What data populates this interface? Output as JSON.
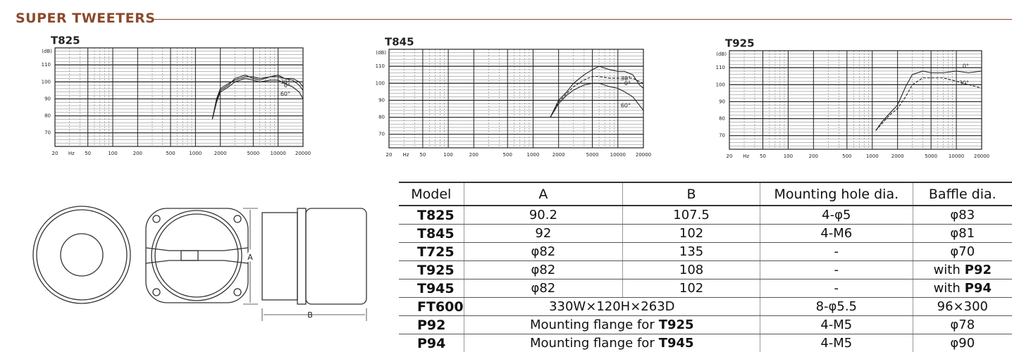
{
  "header": {
    "title": "SUPER TWEETERS"
  },
  "chart_data": [
    {
      "type": "line",
      "title": "T825",
      "y_label": "(dB)",
      "x_label": "Hz",
      "xlog": true,
      "xlim": [
        20,
        20000
      ],
      "ylim": [
        62,
        120
      ],
      "xticks": [
        20,
        50,
        100,
        200,
        500,
        1000,
        2000,
        5000,
        10000,
        20000
      ],
      "yticks": [
        70,
        80,
        90,
        100,
        110
      ],
      "grid": true,
      "color": "#222",
      "x": [
        1600,
        1800,
        2000,
        2500,
        3000,
        4000,
        5000,
        6000,
        8000,
        10000,
        12000,
        15000,
        18000,
        20000
      ],
      "series": [
        {
          "name": "30°",
          "dashed": false,
          "values": [
            78,
            90,
            96,
            99,
            101,
            103,
            103,
            102,
            103,
            104,
            102,
            102,
            100,
            97
          ]
        },
        {
          "name": "0°",
          "dashed": false,
          "values": [
            78,
            89,
            95,
            98,
            102,
            104,
            102,
            101,
            103,
            103,
            102,
            101,
            98,
            95
          ]
        },
        {
          "name": "60°",
          "dashed": false,
          "values": [
            78,
            88,
            94,
            97,
            100,
            102,
            101,
            100,
            101,
            101,
            99,
            97,
            94,
            90
          ]
        }
      ]
    },
    {
      "type": "line",
      "title": "T845",
      "y_label": "(dB)",
      "x_label": "Hz",
      "xlog": true,
      "xlim": [
        20,
        20000
      ],
      "ylim": [
        62,
        120
      ],
      "xticks": [
        20,
        50,
        100,
        200,
        500,
        1000,
        2000,
        5000,
        10000,
        20000
      ],
      "yticks": [
        70,
        80,
        90,
        100,
        110
      ],
      "grid": true,
      "color": "#222",
      "x": [
        1600,
        2000,
        2500,
        3000,
        4000,
        5000,
        6000,
        8000,
        10000,
        12000,
        15000,
        18000,
        20000
      ],
      "series": [
        {
          "name": "0°",
          "dashed": false,
          "values": [
            80,
            90,
            95,
            100,
            105,
            108,
            110,
            108,
            107,
            107,
            105,
            99,
            97
          ]
        },
        {
          "name": "30°",
          "dashed": true,
          "values": [
            80,
            89,
            94,
            98,
            102,
            104,
            104,
            103,
            103,
            103,
            103,
            101,
            100
          ]
        },
        {
          "name": "60°",
          "dashed": false,
          "values": [
            80,
            88,
            93,
            96,
            99,
            100,
            100,
            98,
            97,
            95,
            92,
            87,
            84
          ]
        }
      ]
    },
    {
      "type": "line",
      "title": "T925",
      "y_label": "(dB)",
      "x_label": "Hz",
      "xlog": true,
      "xlim": [
        20,
        20000
      ],
      "ylim": [
        62,
        120
      ],
      "xticks": [
        20,
        50,
        100,
        200,
        500,
        1000,
        2000,
        5000,
        10000,
        20000
      ],
      "yticks": [
        70,
        80,
        90,
        100,
        110
      ],
      "grid": true,
      "color": "#222",
      "x": [
        1100,
        1300,
        1600,
        2000,
        2500,
        3000,
        4000,
        5000,
        7000,
        10000,
        14000,
        20000
      ],
      "series": [
        {
          "name": "0°",
          "dashed": false,
          "values": [
            73,
            78,
            83,
            88,
            99,
            106,
            108,
            107,
            107,
            108,
            107,
            108
          ]
        },
        {
          "name": "30°",
          "dashed": true,
          "values": [
            73,
            77,
            82,
            86,
            93,
            100,
            104,
            104,
            104,
            102,
            100,
            98
          ]
        }
      ]
    }
  ],
  "diagram": {
    "dim_a": "A",
    "dim_b": "B"
  },
  "table": {
    "header": [
      "Model",
      "A",
      "B",
      "Mounting hole dia.",
      "Baffle dia."
    ],
    "rows": [
      [
        "T825",
        "90.2",
        "107.5",
        "4-φ5",
        "φ83"
      ],
      [
        "T845",
        "92",
        "102",
        "4-M6",
        "φ81"
      ],
      [
        "T725",
        "φ82",
        "135",
        "-",
        "φ70"
      ],
      [
        "T925",
        "φ82",
        "108",
        "-",
        {
          "text": "with",
          "bold": "P92"
        }
      ],
      [
        "T945",
        "φ82",
        "102",
        "-",
        {
          "text": "with",
          "bold": "P94"
        }
      ],
      [
        "FT600",
        "330W×120H×263D",
        "8-φ5.5",
        "96×300"
      ],
      [
        "P92",
        {
          "text": "Mounting flange for",
          "bold": "T925"
        },
        "4-M5",
        "φ78"
      ],
      [
        "P94",
        {
          "text": "Mounting flange for",
          "bold": "T945"
        },
        "4-M5",
        "φ90"
      ]
    ]
  }
}
